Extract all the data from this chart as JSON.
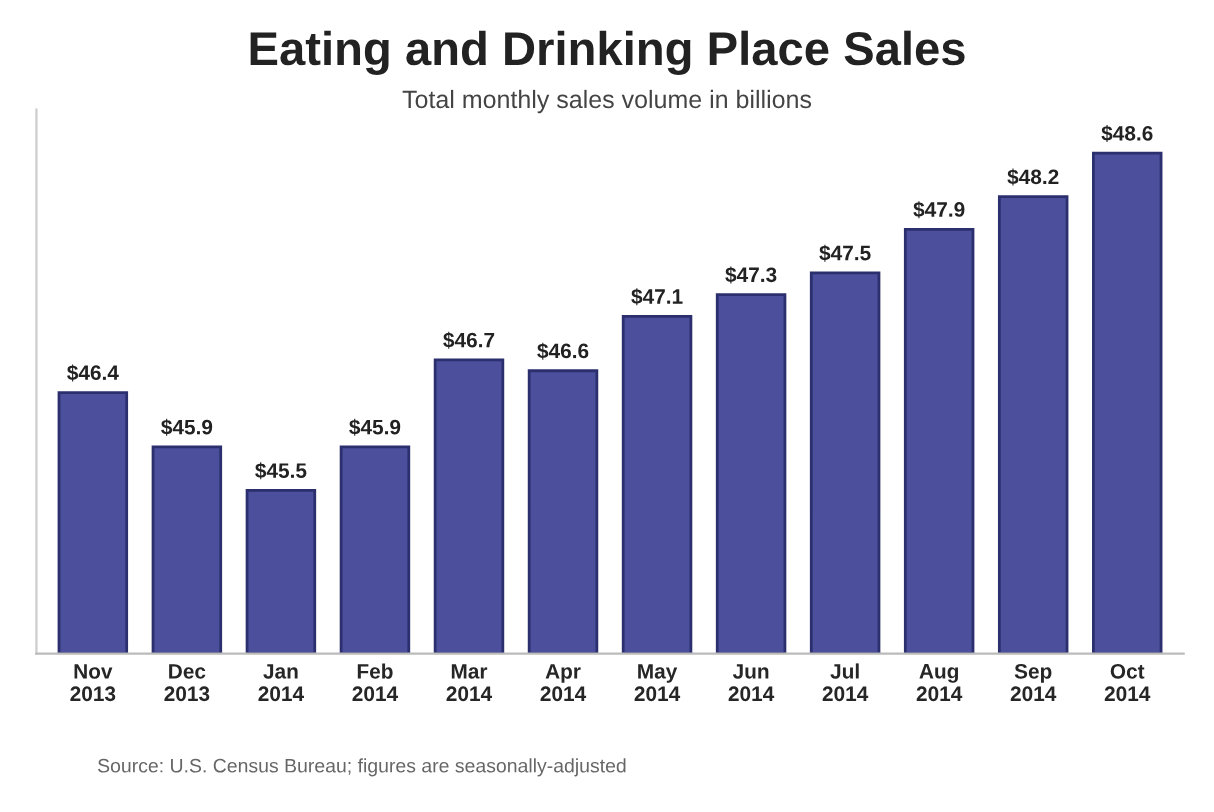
{
  "chart_data": {
    "type": "bar",
    "title": "Eating and Drinking Place Sales",
    "subtitle": "Total monthly sales volume in billions",
    "categories": [
      "Nov\n2013",
      "Dec\n2013",
      "Jan\n2014",
      "Feb\n2014",
      "Mar\n2014",
      "Apr\n2014",
      "May\n2014",
      "Jun\n2014",
      "Jul\n2014",
      "Aug\n2014",
      "Sep\n2014",
      "Oct\n2014"
    ],
    "values": [
      46.4,
      45.9,
      45.5,
      45.9,
      46.7,
      46.6,
      47.1,
      47.3,
      47.5,
      47.9,
      48.2,
      48.6
    ],
    "value_labels": [
      "$46.4",
      "$45.9",
      "$45.5",
      "$45.9",
      "$46.7",
      "$46.6",
      "$47.1",
      "$47.3",
      "$47.5",
      "$47.9",
      "$48.2",
      "$48.6"
    ],
    "color": "#4b4f9c",
    "ylim": [
      44,
      49
    ],
    "grid": false,
    "annotations": [
      "Source: U.S. Census Bureau; figures are seasonally-adjusted"
    ]
  }
}
